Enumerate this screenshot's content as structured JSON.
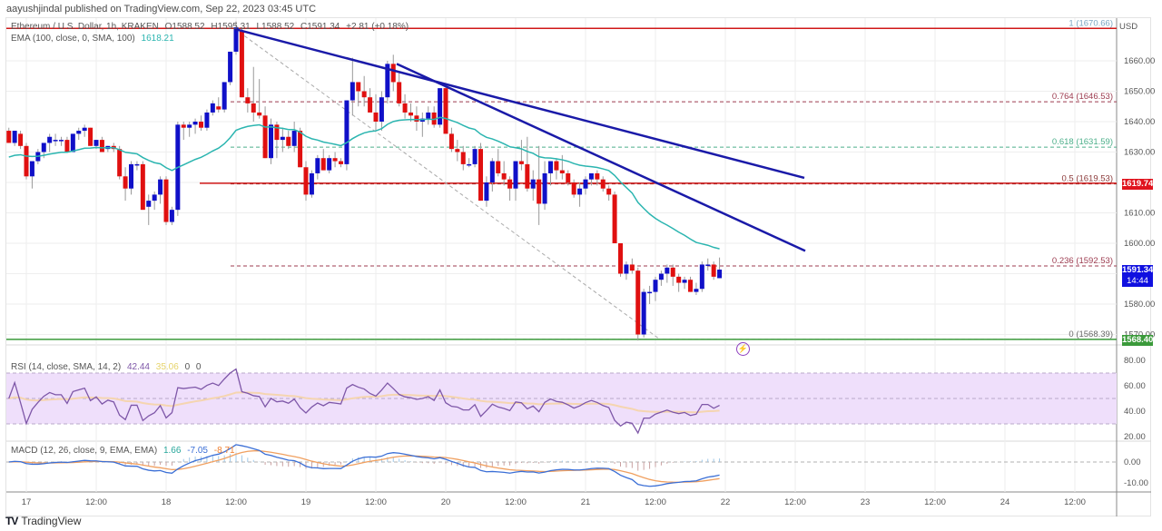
{
  "header": {
    "published": "aayushjindal published on TradingView.com, Sep 22, 2023 03:45 UTC"
  },
  "symbol_legend": {
    "name": "Ethereum / U.S. Dollar, 1h, KRAKEN",
    "open": "O1588.52",
    "high": "H1595.31",
    "low": "L1588.52",
    "close": "C1591.34",
    "change": "+2.81 (+0.18%)"
  },
  "ema_legend": {
    "label": "EMA (100, close, 0, SMA, 100)",
    "value": "1618.21"
  },
  "rsi_legend": {
    "label": "RSI (14, close, SMA, 14, 2)",
    "value": "42.44",
    "sma": "35.06",
    "v3": "0",
    "v4": "0"
  },
  "macd_legend": {
    "label": "MACD (12, 26, close, 9, EMA, EMA)",
    "hist": "1.66",
    "macd": "-7.05",
    "signal": "-8.71"
  },
  "price_axis": {
    "currency": "USD",
    "ticks": [
      "1660.00",
      "1650.00",
      "1640.00",
      "1630.00",
      "1610.00",
      "1600.00",
      "1580.00",
      "1570.00"
    ],
    "current_price_tag": "1591.34",
    "countdown": "14:44",
    "resistance_tag": "1619.74",
    "support_tag": "1568.40"
  },
  "rsi_axis": {
    "ticks": [
      "80.00",
      "60.00",
      "40.00",
      "20.00"
    ]
  },
  "macd_axis": {
    "ticks": [
      "0.00",
      "-10.00"
    ]
  },
  "time_axis": {
    "ticks": [
      "17",
      "12:00",
      "18",
      "12:00",
      "19",
      "12:00",
      "20",
      "12:00",
      "21",
      "12:00",
      "22",
      "12:00",
      "23",
      "12:00",
      "24",
      "12:00"
    ]
  },
  "fib_levels": [
    {
      "label": "1 (1670.66)",
      "price": 1670.66,
      "color": "#7aa6c2"
    },
    {
      "label": "0.764 (1646.53)",
      "price": 1646.53,
      "color": "#9c3b4f"
    },
    {
      "label": "0.618 (1631.59)",
      "price": 1631.59,
      "color": "#4caf8a"
    },
    {
      "label": "0.5 (1619.53)",
      "price": 1619.53,
      "color": "#8b3a3a"
    },
    {
      "label": "0.236 (1592.53)",
      "price": 1592.53,
      "color": "#9c3b4f"
    },
    {
      "label": "0 (1568.39)",
      "price": 1568.39,
      "color": "#666666"
    }
  ],
  "footer": {
    "brand": "TradingView"
  },
  "colors": {
    "bull": "#1010c8",
    "bear": "#e01010",
    "ema": "#2bb5b0",
    "trendline": "#1a1aa8",
    "resistance": "#d01818",
    "support": "#3a9a3a",
    "rsi_line": "#7e57a8",
    "rsi_band": "#efdffb",
    "macd_line": "#3b6fd6",
    "signal_line": "#f0a060",
    "current_tag": "#1010e0"
  },
  "chart_data": {
    "type": "candlestick",
    "title": "Ethereum / U.S. Dollar, 1h, KRAKEN",
    "xlabel": "",
    "ylabel": "USD",
    "ylim": [
      1562,
      1678
    ],
    "grid": true,
    "x_ticks": [
      "17",
      "12:00",
      "18",
      "12:00",
      "19",
      "12:00",
      "20",
      "12:00",
      "21",
      "12:00",
      "22",
      "12:00",
      "23",
      "12:00",
      "24",
      "12:00"
    ],
    "candles_ohlc": [
      [
        1637,
        1638,
        1633,
        1633
      ],
      [
        1633,
        1637,
        1632,
        1637
      ],
      [
        1636,
        1637,
        1631,
        1632
      ],
      [
        1632,
        1633,
        1621,
        1622
      ],
      [
        1622,
        1627,
        1618,
        1627
      ],
      [
        1627,
        1631,
        1626,
        1630
      ],
      [
        1630,
        1633,
        1628,
        1633
      ],
      [
        1633,
        1636,
        1630,
        1635
      ],
      [
        1634,
        1636,
        1632,
        1634
      ],
      [
        1634,
        1635,
        1632,
        1634
      ],
      [
        1634,
        1635,
        1630,
        1630
      ],
      [
        1630,
        1636,
        1630,
        1636
      ],
      [
        1636,
        1638,
        1634,
        1637
      ],
      [
        1637,
        1639,
        1635,
        1638
      ],
      [
        1638,
        1638,
        1632,
        1632
      ],
      [
        1632,
        1634,
        1631,
        1634
      ],
      [
        1634,
        1635,
        1630,
        1630
      ],
      [
        1631,
        1632,
        1630,
        1632
      ],
      [
        1632,
        1633,
        1630,
        1631
      ],
      [
        1631,
        1632,
        1621,
        1622
      ],
      [
        1622,
        1625,
        1614,
        1618
      ],
      [
        1618,
        1627,
        1616,
        1626
      ],
      [
        1626,
        1627,
        1624,
        1626
      ],
      [
        1626,
        1627,
        1611,
        1611
      ],
      [
        1612,
        1616,
        1606,
        1614
      ],
      [
        1614,
        1617,
        1611,
        1616
      ],
      [
        1616,
        1622,
        1613,
        1621
      ],
      [
        1621,
        1622,
        1606,
        1607
      ],
      [
        1607,
        1612,
        1606,
        1611
      ],
      [
        1611,
        1640,
        1609,
        1639
      ],
      [
        1639,
        1640,
        1634,
        1638
      ],
      [
        1638,
        1640,
        1635,
        1639
      ],
      [
        1639,
        1641,
        1636,
        1640
      ],
      [
        1640,
        1642,
        1637,
        1638
      ],
      [
        1638,
        1644,
        1637,
        1643
      ],
      [
        1643,
        1647,
        1642,
        1646
      ],
      [
        1645,
        1648,
        1643,
        1644
      ],
      [
        1644,
        1653,
        1643,
        1653
      ],
      [
        1653,
        1663,
        1652,
        1663
      ],
      [
        1663,
        1673,
        1662,
        1671
      ],
      [
        1670,
        1671,
        1648,
        1648
      ],
      [
        1648,
        1651,
        1643,
        1646
      ],
      [
        1646,
        1658,
        1640,
        1643
      ],
      [
        1643,
        1654,
        1641,
        1642
      ],
      [
        1642,
        1645,
        1628,
        1628
      ],
      [
        1628,
        1641,
        1626,
        1639
      ],
      [
        1639,
        1640,
        1628,
        1634
      ],
      [
        1634,
        1638,
        1630,
        1635
      ],
      [
        1635,
        1637,
        1631,
        1632
      ],
      [
        1632,
        1640,
        1630,
        1637
      ],
      [
        1637,
        1638,
        1625,
        1625
      ],
      [
        1625,
        1627,
        1614,
        1616
      ],
      [
        1616,
        1624,
        1615,
        1623
      ],
      [
        1623,
        1629,
        1621,
        1628
      ],
      [
        1628,
        1631,
        1624,
        1624
      ],
      [
        1624,
        1629,
        1623,
        1628
      ],
      [
        1628,
        1630,
        1625,
        1627
      ],
      [
        1627,
        1628,
        1625,
        1626
      ],
      [
        1626,
        1647,
        1624,
        1647
      ],
      [
        1647,
        1661,
        1642,
        1653
      ],
      [
        1653,
        1653,
        1645,
        1650
      ],
      [
        1650,
        1655,
        1645,
        1648
      ],
      [
        1648,
        1651,
        1643,
        1643
      ],
      [
        1643,
        1649,
        1637,
        1640
      ],
      [
        1640,
        1650,
        1637,
        1648
      ],
      [
        1648,
        1660,
        1646,
        1659
      ],
      [
        1659,
        1662,
        1650,
        1653
      ],
      [
        1653,
        1656,
        1645,
        1646
      ],
      [
        1646,
        1649,
        1641,
        1643
      ],
      [
        1643,
        1646,
        1640,
        1642
      ],
      [
        1642,
        1645,
        1637,
        1640
      ],
      [
        1640,
        1643,
        1635,
        1641
      ],
      [
        1641,
        1645,
        1639,
        1643
      ],
      [
        1643,
        1645,
        1638,
        1639
      ],
      [
        1639,
        1651,
        1638,
        1651
      ],
      [
        1651,
        1652,
        1636,
        1636
      ],
      [
        1636,
        1638,
        1630,
        1631
      ],
      [
        1631,
        1634,
        1627,
        1630
      ],
      [
        1630,
        1632,
        1624,
        1626
      ],
      [
        1626,
        1628,
        1625,
        1626
      ],
      [
        1626,
        1632,
        1625,
        1631
      ],
      [
        1631,
        1633,
        1614,
        1614
      ],
      [
        1614,
        1622,
        1612,
        1620
      ],
      [
        1620,
        1628,
        1617,
        1627
      ],
      [
        1627,
        1631,
        1622,
        1623
      ],
      [
        1623,
        1627,
        1619,
        1621
      ],
      [
        1621,
        1622,
        1614,
        1618
      ],
      [
        1618,
        1627,
        1614,
        1627
      ],
      [
        1627,
        1634,
        1624,
        1626
      ],
      [
        1626,
        1635,
        1617,
        1618
      ],
      [
        1618,
        1624,
        1614,
        1621
      ],
      [
        1621,
        1632,
        1606,
        1613
      ],
      [
        1613,
        1627,
        1611,
        1623
      ],
      [
        1623,
        1627,
        1619,
        1627
      ],
      [
        1627,
        1628,
        1621,
        1624
      ],
      [
        1624,
        1629,
        1621,
        1623
      ],
      [
        1623,
        1624,
        1619,
        1620
      ],
      [
        1620,
        1621,
        1615,
        1616
      ],
      [
        1616,
        1620,
        1612,
        1618
      ],
      [
        1618,
        1622,
        1616,
        1621
      ],
      [
        1621,
        1623,
        1619,
        1623
      ],
      [
        1623,
        1624,
        1619,
        1621
      ],
      [
        1621,
        1622,
        1617,
        1618
      ],
      [
        1618,
        1619,
        1614,
        1616
      ],
      [
        1616,
        1617,
        1600,
        1600
      ],
      [
        1600,
        1600,
        1589,
        1590
      ],
      [
        1590,
        1594,
        1588,
        1593
      ],
      [
        1593,
        1595,
        1590,
        1591
      ],
      [
        1591,
        1592,
        1568,
        1570
      ],
      [
        1570,
        1585,
        1569,
        1584
      ],
      [
        1584,
        1586,
        1580,
        1584
      ],
      [
        1584,
        1589,
        1581,
        1588
      ],
      [
        1588,
        1591,
        1586,
        1590
      ],
      [
        1590,
        1593,
        1587,
        1592
      ],
      [
        1592,
        1593,
        1586,
        1589
      ],
      [
        1589,
        1590,
        1584,
        1587
      ],
      [
        1587,
        1589,
        1585,
        1588
      ],
      [
        1588,
        1589,
        1584,
        1584
      ],
      [
        1584,
        1587,
        1583,
        1585
      ],
      [
        1585,
        1594,
        1584,
        1593
      ],
      [
        1593,
        1595,
        1591,
        1593
      ],
      [
        1593,
        1594,
        1588,
        1589
      ],
      [
        1588.52,
        1595.31,
        1588.52,
        1591.34
      ]
    ],
    "ema100": {
      "label": "EMA 100",
      "last": 1618.21
    },
    "horizontal_levels": [
      {
        "name": "resistance",
        "price": 1619.74
      },
      {
        "name": "top",
        "price": 1670.66
      },
      {
        "name": "support",
        "price": 1568.4
      }
    ],
    "trendlines": [
      {
        "from": [
          1670.5,
          "Sep 18 12:00"
        ],
        "to": [
          1622,
          "Sep 23 ~06:00"
        ]
      },
      {
        "from": [
          1659,
          "Sep 19 20:00"
        ],
        "to": [
          1598,
          "Sep 23 ~02:00"
        ]
      }
    ],
    "rsi": {
      "value": 42.44,
      "sma": 35.06,
      "band": [
        30,
        70
      ],
      "range": [
        15,
        85
      ]
    },
    "macd": {
      "hist": 1.66,
      "macd": -7.05,
      "signal": -8.71
    }
  }
}
